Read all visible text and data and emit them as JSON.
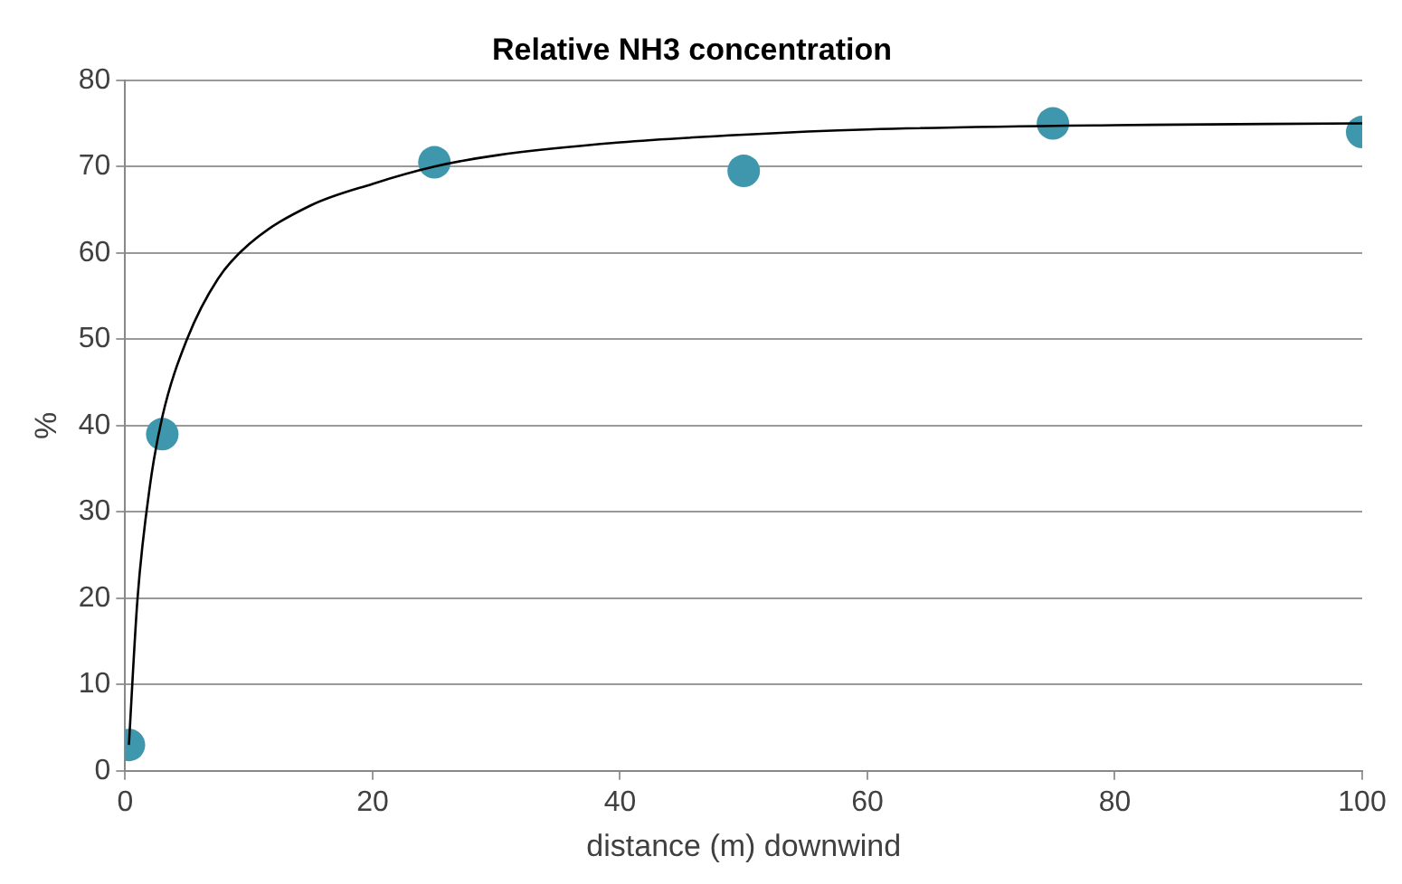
{
  "chart_data": {
    "type": "scatter",
    "title": "Relative NH3 concentration",
    "xlabel": "distance (m) downwind",
    "ylabel": "%",
    "xlim": [
      0,
      100
    ],
    "xticks": [
      0,
      20,
      40,
      60,
      80,
      100
    ],
    "ylim": [
      0,
      80
    ],
    "yticks": [
      0,
      10,
      20,
      30,
      40,
      50,
      60,
      70,
      80
    ],
    "grid": "y",
    "legend": false,
    "marker": "circle",
    "series": [
      {
        "type": "scatter",
        "color": "#3f97ad",
        "x": [
          0.3,
          3,
          25,
          50,
          75,
          100
        ],
        "values": [
          3,
          39,
          70.5,
          69.5,
          75,
          74
        ]
      },
      {
        "type": "line",
        "color": "#000000",
        "marker": "none",
        "line_style": "solid",
        "x": [
          0.3,
          1,
          2,
          3,
          5,
          7.5,
          10,
          15,
          20,
          25,
          30,
          40,
          50,
          60,
          80,
          100
        ],
        "values": [
          3,
          20,
          33,
          41,
          50,
          57,
          61,
          65.5,
          68,
          70,
          71.3,
          72.8,
          73.7,
          74.3,
          74.8,
          75
        ]
      }
    ]
  }
}
